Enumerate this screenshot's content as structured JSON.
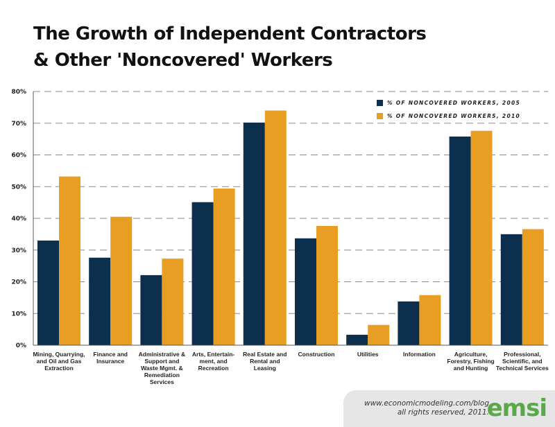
{
  "chart_data": {
    "type": "bar",
    "title": "The Growth of Independent Contractors & Other 'Noncovered' Workers",
    "title_lines": [
      "The Growth of Independent Contractors",
      "& Other 'Noncovered' Workers"
    ],
    "xlabel": "",
    "ylabel": "",
    "ylim": [
      0,
      80
    ],
    "yticks": [
      0,
      10,
      20,
      30,
      40,
      50,
      60,
      70,
      80
    ],
    "ytick_labels": [
      "0%",
      "10%",
      "20%",
      "30%",
      "40%",
      "50%",
      "60%",
      "70%",
      "80%"
    ],
    "grid": true,
    "legend_position": "top-right",
    "categories": [
      "Mining, Quarrying, and Oil and Gas Extraction",
      "Finance and Insurance",
      "Administrative & Support and Waste Mgmt. & Remediation Services",
      "Arts, Entertain- ment, and Recreation",
      "Real Estate and Rental and Leasing",
      "Construction",
      "Utilities",
      "Information",
      "Agriculture, Forestry, Fishing and Hunting",
      "Professional, Scientific, and Technical Services"
    ],
    "category_lines": [
      [
        "Mining, Quarrying,",
        "and Oil and Gas",
        "Extraction"
      ],
      [
        "Finance and",
        "Insurance"
      ],
      [
        "Administrative &",
        "Support and",
        "Waste Mgmt. &",
        "Remediation",
        "Services"
      ],
      [
        "Arts, Entertain-",
        "ment, and",
        "Recreation"
      ],
      [
        "Real Estate and",
        "Rental and Leasing"
      ],
      [
        "Construction"
      ],
      [
        "Utilities"
      ],
      [
        "Information"
      ],
      [
        "Agriculture,",
        "Forestry, Fishing",
        "and Hunting"
      ],
      [
        "Professional,",
        "Scientific, and",
        "Technical Services"
      ]
    ],
    "series": [
      {
        "name": "% OF NONCOVERED WORKERS, 2005",
        "color": "#0b2f4c",
        "values": [
          33.0,
          27.6,
          22.1,
          45.1,
          70.2,
          33.7,
          3.3,
          13.8,
          65.8,
          35.0
        ]
      },
      {
        "name": "% OF NONCOVERED WORKERS, 2010",
        "color": "#e89e22",
        "values": [
          53.2,
          40.5,
          27.3,
          49.4,
          74.0,
          37.6,
          6.4,
          15.8,
          67.6,
          36.6
        ]
      }
    ]
  },
  "footer": {
    "url": "www.economicmodeling.com/blog",
    "rights": "all rights reserved, 2011.",
    "logo": "emsi"
  },
  "colors": {
    "grid": "#8a8a8a",
    "axis": "#555555",
    "footer_bg": "#e6e6e6",
    "logo": "#5aa84a"
  }
}
